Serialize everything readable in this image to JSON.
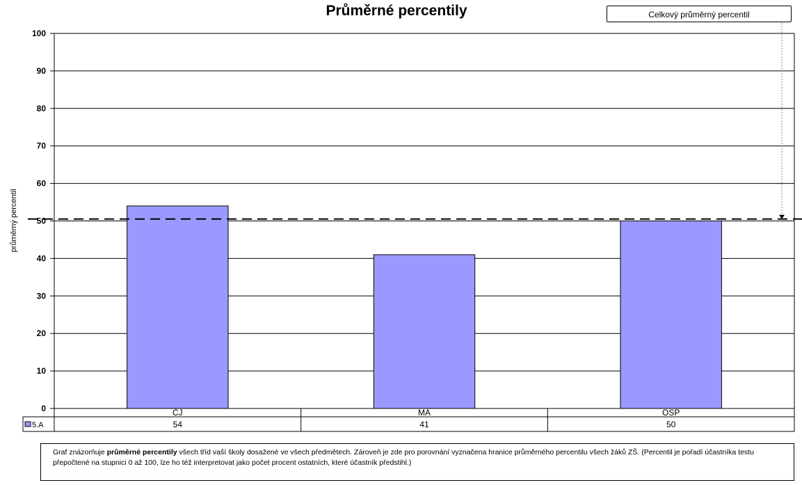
{
  "chart_data": {
    "type": "bar",
    "title": "Průměrné percentily",
    "ylabel": "průměrný percentil",
    "xlabel": "",
    "categories": [
      "ČJ",
      "MA",
      "OSP"
    ],
    "series": [
      {
        "name": "5.A",
        "values": [
          54,
          41,
          50
        ],
        "value_labels": [
          "54",
          "41",
          "50"
        ],
        "color": "#9999ff"
      }
    ],
    "ylim": [
      0,
      100
    ],
    "yticks": [
      0,
      10,
      20,
      30,
      40,
      50,
      60,
      70,
      80,
      90,
      100
    ],
    "ytick_labels": [
      "0",
      "10",
      "20",
      "30",
      "40",
      "50",
      "60",
      "70",
      "80",
      "90",
      "100"
    ],
    "grid": true,
    "reference_line": {
      "label": "Celkový průměrný percentil",
      "value": 50.5,
      "style": "dashed"
    },
    "data_table": true
  },
  "note": {
    "part1": "Graf znázorňuje ",
    "bold": "průměrné percentily",
    "part2": " všech tříd vaší školy dosažené ve všech předmětech. Zároveň je zde pro porovnání vyznačena hranice průměrného percentilu všech žáků ZŠ. (Percentil je pořadí účastníka testu přepočtené na stupnici 0 až 100, lze ho též interpretovat jako počet procent ostatních, které účastník předstihl.)"
  }
}
